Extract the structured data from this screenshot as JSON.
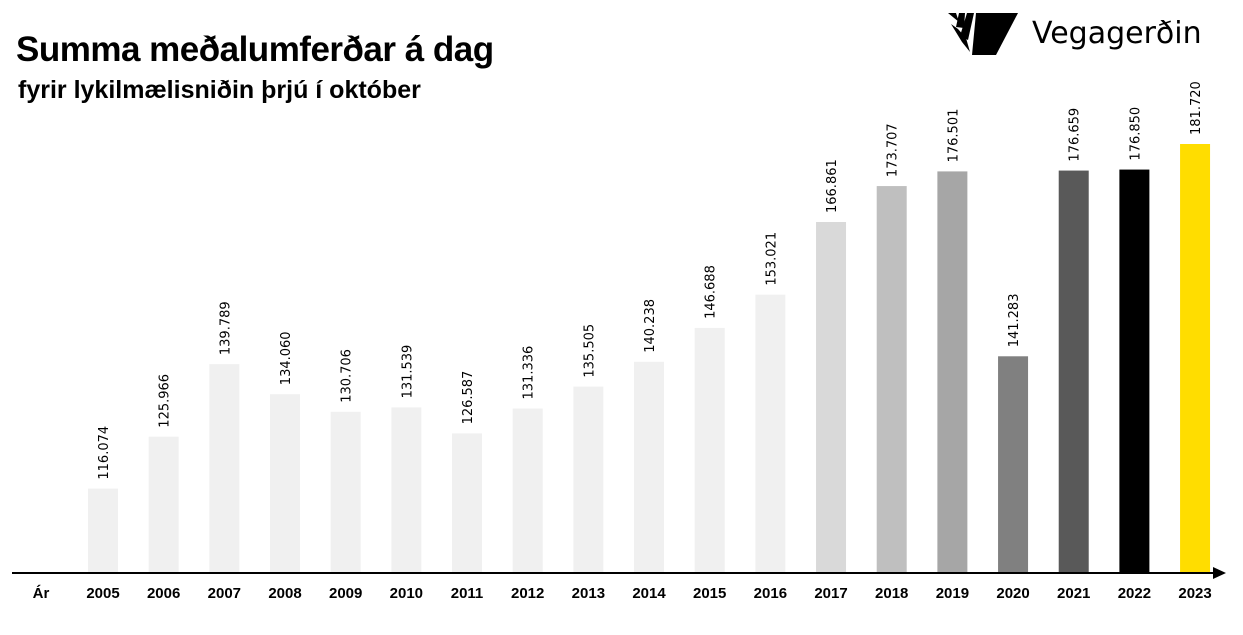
{
  "title": "Summa meðalumferðar á dag",
  "subtitle": "fyrir lykilmælisniðin þrjú í október",
  "logo": {
    "text": "Vegagerðin",
    "icon": "vegagerdin-stripes-logo"
  },
  "chart_data": {
    "type": "bar",
    "title": "Summa meðalumferðar á dag",
    "subtitle": "fyrir lykilmælisniðin þrjú í október",
    "xlabel": "Ár",
    "ylabel": "",
    "ylim": [
      100000,
      190000
    ],
    "grid": false,
    "categories": [
      "2005",
      "2006",
      "2007",
      "2008",
      "2009",
      "2010",
      "2011",
      "2012",
      "2013",
      "2014",
      "2015",
      "2016",
      "2017",
      "2018",
      "2019",
      "2020",
      "2021",
      "2022",
      "2023"
    ],
    "values": [
      116074,
      125966,
      139789,
      134060,
      130706,
      131539,
      126587,
      131336,
      135505,
      140238,
      146688,
      153021,
      166861,
      173707,
      176501,
      141283,
      176659,
      176850,
      181720
    ],
    "data_labels": [
      "116.074",
      "125.966",
      "139.789",
      "134.060",
      "130.706",
      "131.539",
      "126.587",
      "131.336",
      "135.505",
      "140.238",
      "146.688",
      "153.021",
      "166.861",
      "173.707",
      "176.501",
      "141.283",
      "176.659",
      "176.850",
      "181.720"
    ],
    "colors": [
      "#f0f0f0",
      "#f0f0f0",
      "#f0f0f0",
      "#f0f0f0",
      "#f0f0f0",
      "#f0f0f0",
      "#f0f0f0",
      "#f0f0f0",
      "#f0f0f0",
      "#f0f0f0",
      "#f0f0f0",
      "#f0f0f0",
      "#d9d9d9",
      "#bfbfbf",
      "#a6a6a6",
      "#808080",
      "#595959",
      "#000000",
      "#ffdd00"
    ]
  }
}
